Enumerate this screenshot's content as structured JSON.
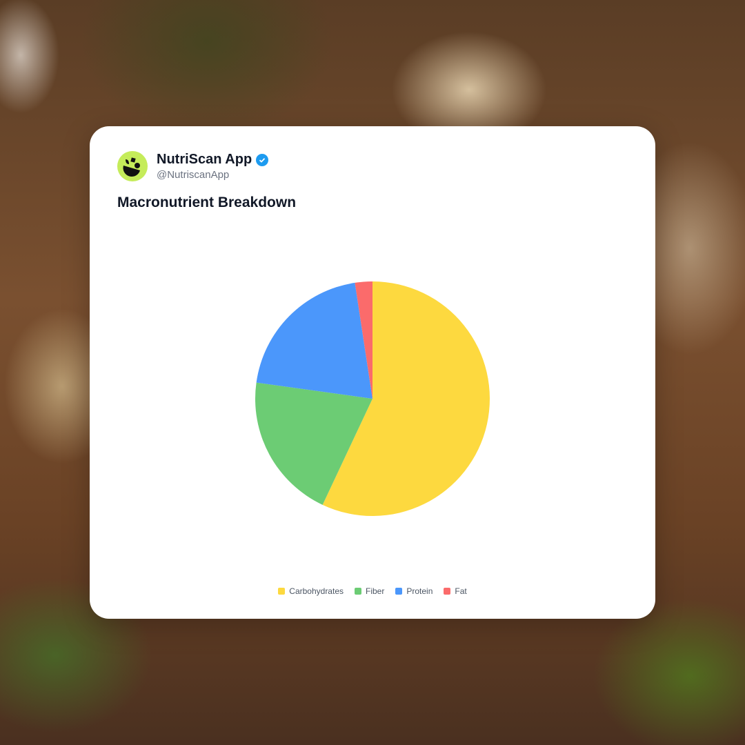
{
  "header": {
    "name": "NutriScan App",
    "handle": "@NutriscanApp",
    "verified": true,
    "avatar_icon": "leaf-bowl-logo",
    "avatar_color": "#c5ec5a"
  },
  "chart_data": {
    "type": "pie",
    "title": "Macronutrient Breakdown",
    "categories": [
      "Carbohydrates",
      "Fiber",
      "Protein",
      "Fat"
    ],
    "values": [
      57,
      20.2,
      20.4,
      2.4
    ],
    "colors": [
      "#fdd93f",
      "#6ccc74",
      "#4b97fb",
      "#fb6b6b"
    ],
    "start_angle": "top",
    "direction": "clockwise",
    "legend_position": "bottom"
  }
}
